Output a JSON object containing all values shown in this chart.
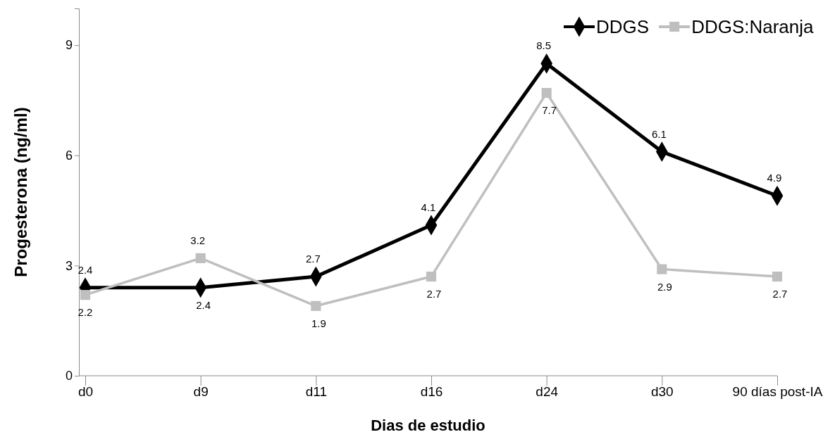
{
  "chart_data": {
    "type": "line",
    "xlabel": "Dias de estudio",
    "ylabel": "Progesterona  (ng/ml)",
    "categories": [
      "d0",
      "d9",
      "d11",
      "d16",
      "d24",
      "d30",
      "90 días post-IA"
    ],
    "ylim": [
      0,
      10
    ],
    "yticks": [
      0,
      3,
      6,
      9
    ],
    "series": [
      {
        "name": "DDGS",
        "color": "#000000",
        "marker": "diamond",
        "values": [
          2.4,
          2.4,
          2.7,
          4.1,
          8.5,
          6.1,
          4.9
        ]
      },
      {
        "name": "DDGS:Naranja",
        "color": "#bfbfbf",
        "marker": "square",
        "values": [
          2.2,
          3.2,
          1.9,
          2.7,
          7.7,
          2.9,
          2.7
        ]
      }
    ],
    "data_labels": true,
    "legend": "top right",
    "grid": false
  }
}
